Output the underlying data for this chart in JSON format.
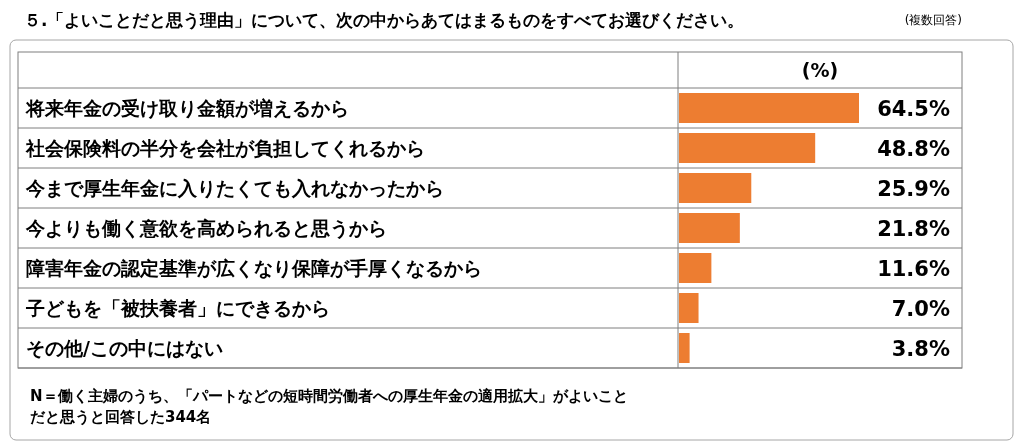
{
  "chart_data": {
    "type": "bar",
    "orientation": "horizontal",
    "title": "５.「よいことだと思う理由」について、次の中からあてはまるものをすべてお選びください。",
    "xlabel": "(%)",
    "categories": [
      "将来年金の受け取り金額が増えるから",
      "社会保険料の半分を会社が負担してくれるから",
      "今まで厚生年金に入りたくても入れなかったから",
      "今よりも働く意欲を高められると思うから",
      "障害年金の認定基準が広くなり保障が手厚くなるから",
      "子どもを「被扶養者」にできるから",
      "その他/この中にはない"
    ],
    "values": [
      64.5,
      48.8,
      25.9,
      21.8,
      11.6,
      7.0,
      3.8
    ],
    "value_labels": [
      "64.5%",
      "48.8%",
      "25.9%",
      "21.8%",
      "11.6%",
      "7.0%",
      "3.8%"
    ],
    "color": "#ed7d31",
    "annotations": [
      "(複数回答)",
      "N＝働く主婦のうち、「パートなどの短時間労働者への厚生年金の適用拡大」がよいことだと思うと回答した344名"
    ]
  }
}
